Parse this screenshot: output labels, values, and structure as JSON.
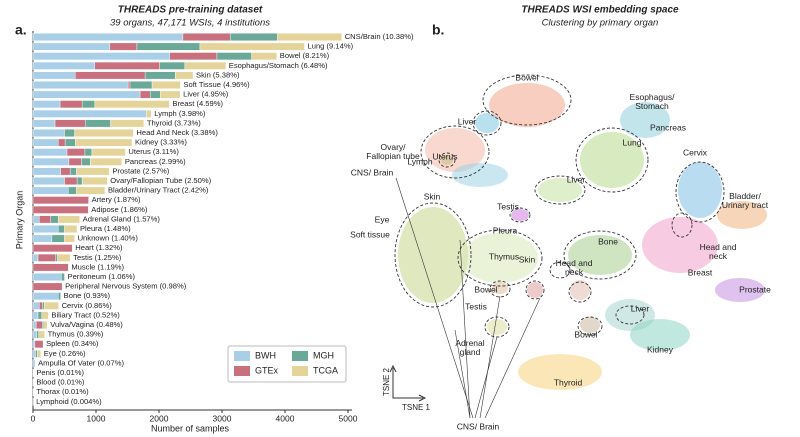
{
  "chart_data": [
    {
      "type": "bar",
      "orientation": "horizontal",
      "stacked": true,
      "panel_label": "a.",
      "title": "THREADS pre-training dataset",
      "subtitle": "39 organs, 47,171 WSIs, 4 institutions",
      "xlabel": "Number of samples",
      "ylabel": "Primary Organ",
      "categories": [
        "CNS/Brain (10.38%)",
        "Lung (9.14%)",
        "Bowel (8.21%)",
        "Esophagus/Stomach (6.48%)",
        "Skin (5.38%)",
        "Soft Tissue (4.96%)",
        "Liver (4.95%)",
        "Breast (4.59%)",
        "Lymph (3.98%)",
        "Thyroid (3.73%)",
        "Head And Neck (3.38%)",
        "Kidney (3.33%)",
        "Uterus (3.11%)",
        "Pancreas (2.99%)",
        "Prostate (2.57%)",
        "Ovary/Fallopian Tube (2.50%)",
        "Bladder/Urinary Tract (2.42%)",
        "Artery (1.87%)",
        "Adipose (1.86%)",
        "Adrenal Gland (1.57%)",
        "Pleura (1.48%)",
        "Unknown (1.40%)",
        "Heart (1.32%)",
        "Testis (1.25%)",
        "Muscle (1.19%)",
        "Peritoneum (1.06%)",
        "Peripheral Nervous System (0.98%)",
        "Bone (0.93%)",
        "Cervix (0.86%)",
        "Biliary Tract (0.52%)",
        "Vulva/Vagina (0.48%)",
        "Thymus (0.39%)",
        "Spleen (0.34%)",
        "Eye (0.26%)",
        "Ampulla Of Vater (0.07%)",
        "Penis (0.01%)",
        "Blood (0.01%)",
        "Thorax (0.01%)",
        "Lymphoid (0.004%)"
      ],
      "series": [
        {
          "name": "BWH",
          "color": "#a9cfe8",
          "values": [
            2380,
            1220,
            2170,
            980,
            670,
            1510,
            1700,
            430,
            1800,
            350,
            500,
            400,
            540,
            570,
            440,
            500,
            560,
            0,
            0,
            100,
            400,
            300,
            0,
            80,
            0,
            450,
            0,
            400,
            100,
            80,
            50,
            60,
            30,
            40,
            33,
            5,
            5,
            5,
            2
          ]
        },
        {
          "name": "GTEx",
          "color": "#c9707f",
          "values": [
            750,
            430,
            750,
            1030,
            1110,
            30,
            160,
            350,
            0,
            480,
            0,
            110,
            285,
            200,
            150,
            200,
            0,
            882,
            877,
            180,
            0,
            0,
            623,
            280,
            561,
            0,
            462,
            0,
            50,
            0,
            100,
            0,
            130,
            0,
            0,
            0,
            0,
            0,
            0
          ]
        },
        {
          "name": "MGH",
          "color": "#6aa898",
          "values": [
            750,
            1000,
            550,
            400,
            480,
            350,
            160,
            200,
            0,
            400,
            160,
            160,
            110,
            140,
            100,
            80,
            130,
            0,
            0,
            120,
            100,
            200,
            0,
            30,
            0,
            50,
            0,
            39,
            30,
            60,
            20,
            30,
            0,
            30,
            0,
            0,
            0,
            0,
            0
          ]
        },
        {
          "name": "TCGA",
          "color": "#e5d49a",
          "values": [
            1020,
            1660,
            400,
            650,
            280,
            450,
            315,
            1185,
            77,
            529,
            934,
            901,
            532,
            500,
            522,
            399,
            452,
            0,
            0,
            341,
            198,
            160,
            0,
            200,
            0,
            0,
            0,
            0,
            226,
            105,
            56,
            94,
            0,
            53,
            0,
            0,
            0,
            0,
            0
          ]
        }
      ],
      "xlim": [
        0,
        5000
      ],
      "xticks": [
        0,
        1000,
        2000,
        3000,
        4000,
        5000
      ],
      "legend": "lower right"
    },
    {
      "type": "scatter",
      "panel_label": "b.",
      "title": "THREADS WSI embedding space",
      "subtitle": "Clustering by primary organ",
      "xlabel": "TSNE 1",
      "ylabel": "TSNE 2",
      "annotations": [
        "Bowel",
        "Esophagus/\nStomach",
        "Liver",
        "Pancreas",
        "Ovary/\nFallopian tube",
        "Uterus",
        "Lung",
        "Cervix",
        "Lymph",
        "CNS/ Brain",
        "Liver",
        "Bladder/\nUrinary tract",
        "Skin",
        "Testis",
        "Eye",
        "Pleura",
        "Soft tissue",
        "Bone",
        "Head and\nneck",
        "Thymus",
        "Skin",
        "Head and\nneck",
        "Bowel",
        "Breast",
        "Prostate",
        "Testis",
        "Liver",
        "Adrenal\ngland",
        "Bowel",
        "Kidney",
        "Thyroid",
        "CNS/ Brain"
      ]
    }
  ]
}
